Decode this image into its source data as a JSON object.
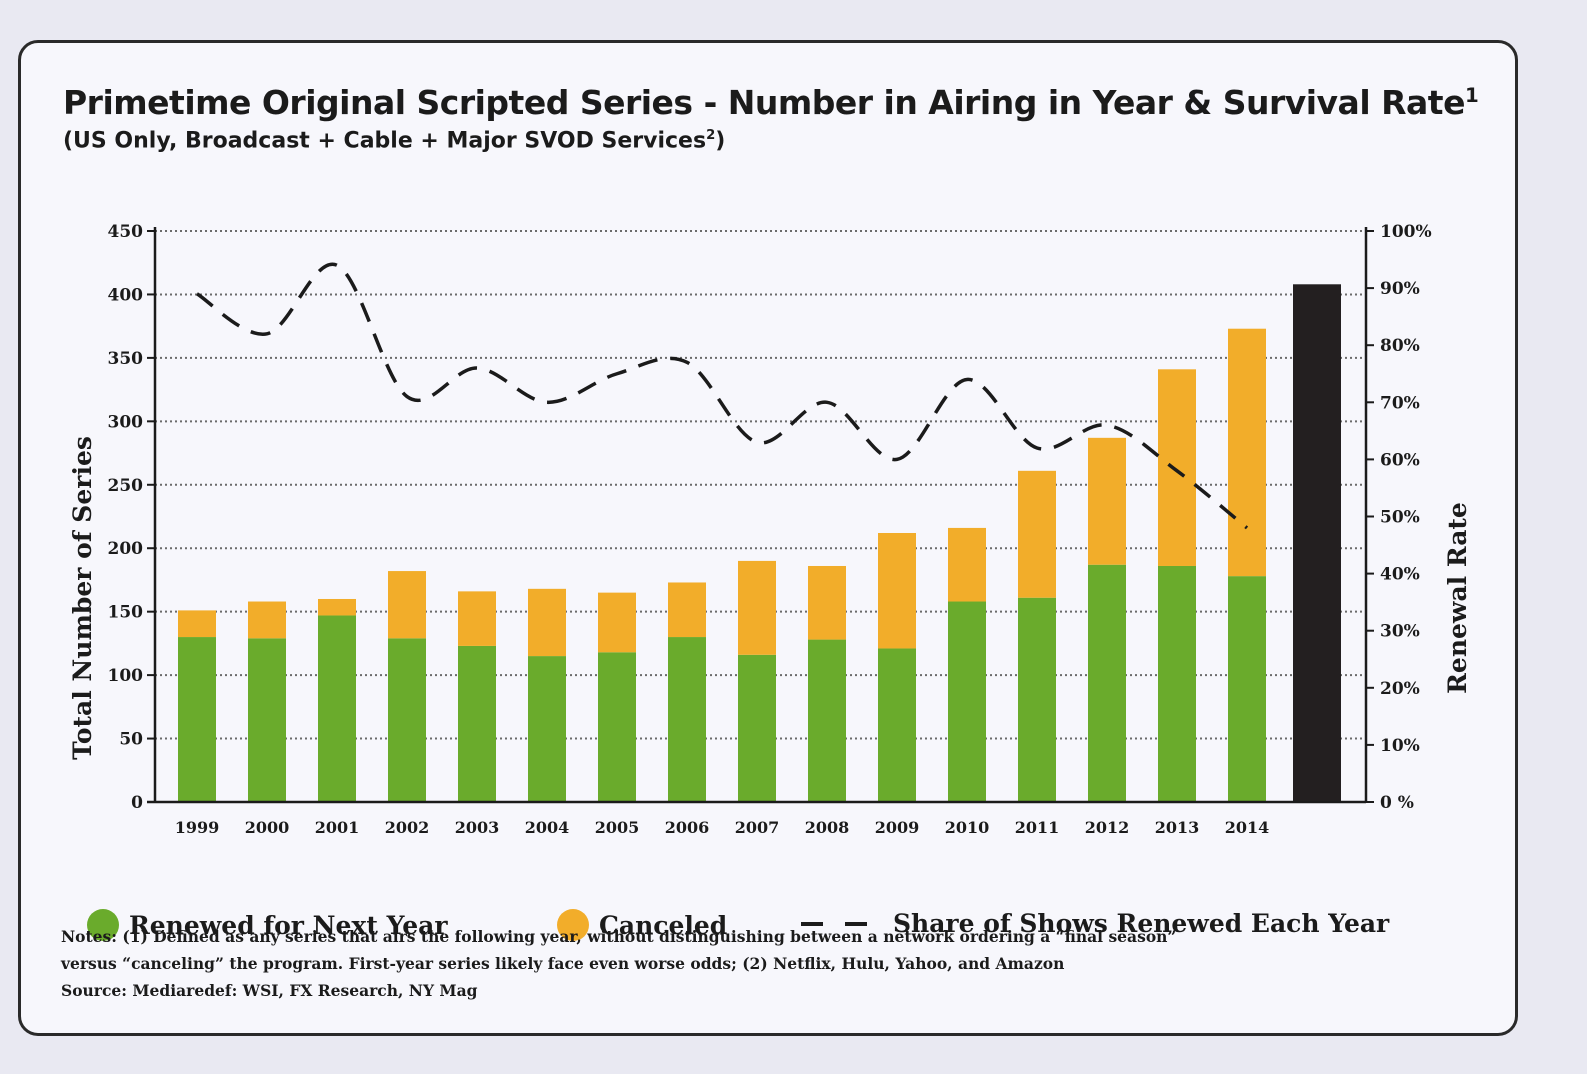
{
  "chart_data": {
    "type": "bar",
    "title": "Primetime Original Scripted Series - Number in Airing in Year & Survival Rate",
    "title_sup": "1",
    "subtitle": "(US Only, Broadcast + Cable + Major SVOD Services",
    "subtitle_sup": "2",
    "subtitle_end": ")",
    "ylabel": "Total Number of Series",
    "y2label": "Renewal Rate",
    "ylim": [
      0,
      450
    ],
    "y2lim": [
      0,
      100
    ],
    "yticks": [
      "0",
      "50",
      "100",
      "150",
      "200",
      "250",
      "300",
      "350",
      "400",
      "450"
    ],
    "y2ticks": [
      "0 %",
      "10%",
      "20%",
      "30%",
      "40%",
      "50%",
      "60%",
      "70%",
      "80%",
      "90%",
      "100%"
    ],
    "categories": [
      "1999",
      "2000",
      "2001",
      "2002",
      "2003",
      "2004",
      "2005",
      "2006",
      "2007",
      "2008",
      "2009",
      "2010",
      "2011",
      "2012",
      "2013",
      "2014"
    ],
    "series": [
      {
        "name": "Renewed for Next Year",
        "kind": "bar",
        "color": "#6aab2c",
        "values": [
          130,
          129,
          147,
          129,
          123,
          115,
          118,
          130,
          116,
          128,
          121,
          158,
          161,
          187,
          186,
          178
        ]
      },
      {
        "name": "Canceled",
        "kind": "bar",
        "color": "#f2ad2a",
        "values": [
          21,
          29,
          13,
          53,
          43,
          53,
          47,
          43,
          74,
          58,
          91,
          58,
          100,
          100,
          155,
          195
        ]
      },
      {
        "name": "Share of Shows Renewed Each Year",
        "kind": "line-dashed",
        "axis": "right",
        "color": "#1b1b1b",
        "values": [
          89,
          82,
          94,
          71,
          76,
          70,
          75,
          77,
          63,
          70,
          60,
          74,
          62,
          66,
          58,
          48
        ]
      }
    ],
    "extra_bar": {
      "value": 408,
      "color": "#231f20"
    },
    "grid": "dotted horizontal",
    "legend_position": "bottom"
  },
  "notes": {
    "line1": "Notes: (1) Defined as any series that airs the following year, without distinguishing between a network ordering a “final season”",
    "line2": "versus “canceling” the program. First-year series likely face even worse odds; (2) Netflix, Hulu, Yahoo, and Amazon",
    "source": "Source: Mediaredef: WSI, FX Research, NY Mag"
  }
}
